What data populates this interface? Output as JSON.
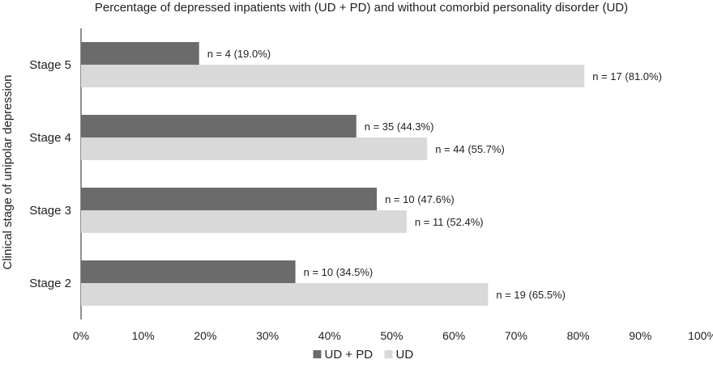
{
  "chart_data": {
    "type": "bar",
    "orientation": "horizontal",
    "title": "Percentage of depressed inpatients with (UD + PD) and without comorbid personality disorder (UD)",
    "xlabel": "",
    "ylabel": "Clinical stage of unipolar depression",
    "categories": [
      "Stage 5",
      "Stage 4",
      "Stage 3",
      "Stage 2"
    ],
    "series": [
      {
        "name": "UD + PD",
        "color": "#6b6b6b",
        "values": [
          19.0,
          44.3,
          47.6,
          34.5
        ],
        "labels": [
          "n = 4 (19.0%)",
          "n = 35 (44.3%)",
          "n = 10 (47.6%)",
          "n = 10 (34.5%)"
        ]
      },
      {
        "name": "UD",
        "color": "#d9d9d9",
        "values": [
          81.0,
          55.7,
          52.4,
          65.5
        ],
        "labels": [
          "n = 17 (81.0%)",
          "n = 44 (55.7%)",
          "n = 11 (52.4%)",
          "n = 19 (65.5%)"
        ]
      }
    ],
    "xlim": [
      0,
      100
    ],
    "xticks": [
      "0%",
      "10%",
      "20%",
      "30%",
      "40%",
      "50%",
      "60%",
      "70%",
      "80%",
      "90%",
      "100%"
    ],
    "grid": false,
    "legend": {
      "position": "bottom"
    }
  }
}
